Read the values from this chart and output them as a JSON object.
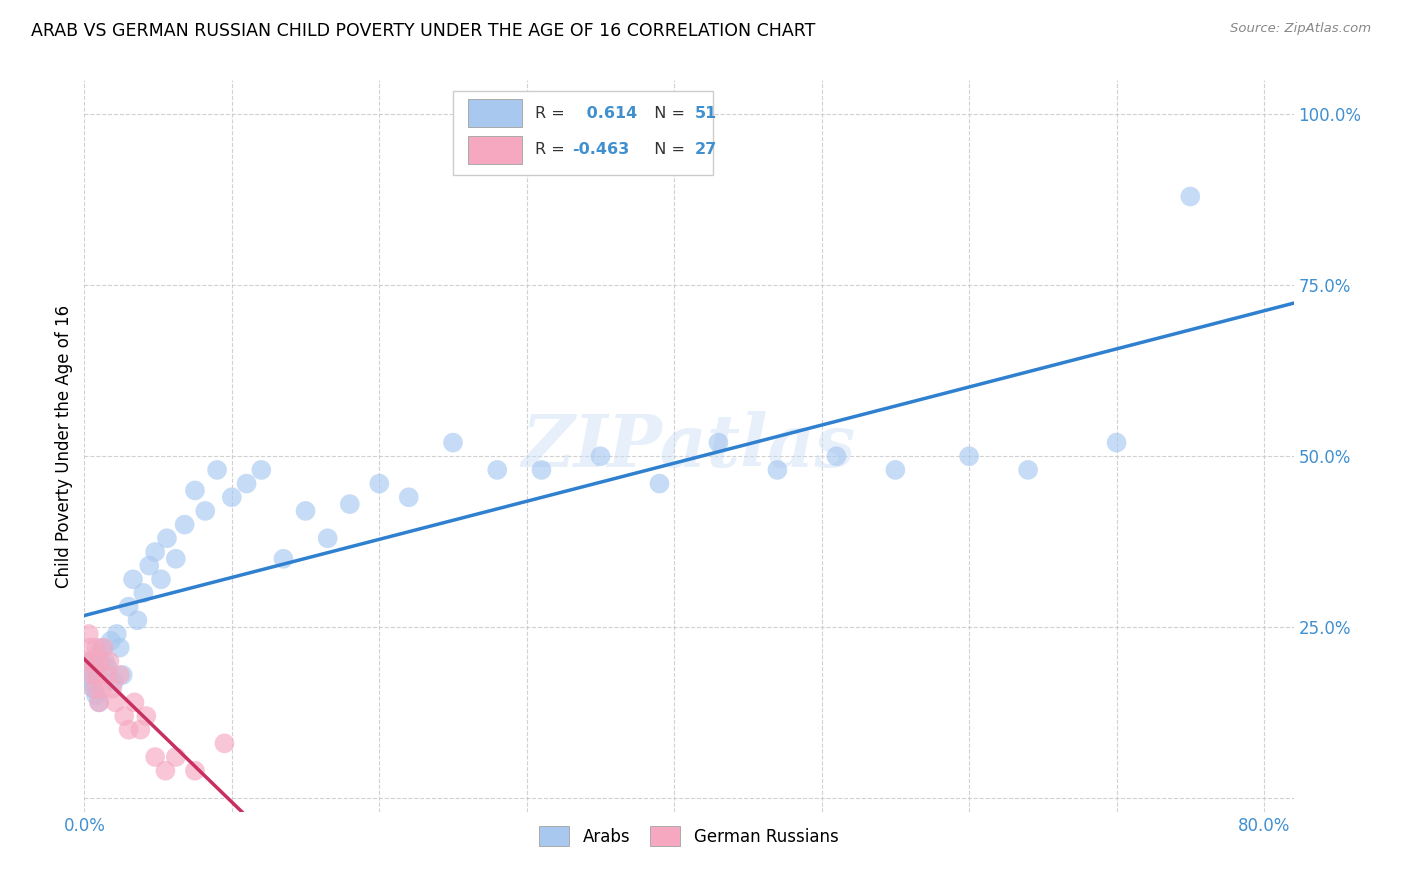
{
  "title": "ARAB VS GERMAN RUSSIAN CHILD POVERTY UNDER THE AGE OF 16 CORRELATION CHART",
  "source": "Source: ZipAtlas.com",
  "ylabel": "Child Poverty Under the Age of 16",
  "xlim": [
    0.0,
    0.82
  ],
  "ylim": [
    -0.02,
    1.05
  ],
  "arab_R": 0.614,
  "arab_N": 51,
  "german_russian_R": -0.463,
  "german_russian_N": 27,
  "arab_color": "#a8c8f0",
  "arab_line_color": "#3080d0",
  "german_russian_color": "#f5a8c0",
  "german_russian_line_color": "#c83060",
  "watermark": "ZIPatlas",
  "tick_color": "#4090d0",
  "arab_x": [
    0.003,
    0.004,
    0.005,
    0.006,
    0.007,
    0.008,
    0.009,
    0.01,
    0.012,
    0.014,
    0.016,
    0.018,
    0.02,
    0.022,
    0.024,
    0.026,
    0.03,
    0.033,
    0.036,
    0.04,
    0.044,
    0.048,
    0.052,
    0.056,
    0.062,
    0.068,
    0.075,
    0.082,
    0.09,
    0.1,
    0.11,
    0.12,
    0.135,
    0.15,
    0.165,
    0.18,
    0.2,
    0.22,
    0.25,
    0.28,
    0.31,
    0.35,
    0.39,
    0.43,
    0.47,
    0.51,
    0.55,
    0.6,
    0.64,
    0.7,
    0.75
  ],
  "arab_y": [
    0.18,
    0.17,
    0.2,
    0.16,
    0.19,
    0.15,
    0.21,
    0.14,
    0.22,
    0.2,
    0.19,
    0.23,
    0.17,
    0.24,
    0.22,
    0.18,
    0.28,
    0.32,
    0.26,
    0.3,
    0.34,
    0.36,
    0.32,
    0.38,
    0.35,
    0.4,
    0.45,
    0.42,
    0.48,
    0.44,
    0.46,
    0.48,
    0.35,
    0.42,
    0.38,
    0.43,
    0.46,
    0.44,
    0.52,
    0.48,
    0.48,
    0.5,
    0.46,
    0.52,
    0.48,
    0.5,
    0.48,
    0.5,
    0.48,
    0.52,
    0.88
  ],
  "german_russian_x": [
    0.002,
    0.003,
    0.004,
    0.005,
    0.006,
    0.007,
    0.008,
    0.009,
    0.01,
    0.011,
    0.012,
    0.013,
    0.015,
    0.017,
    0.019,
    0.021,
    0.024,
    0.027,
    0.03,
    0.034,
    0.038,
    0.042,
    0.048,
    0.055,
    0.062,
    0.075,
    0.095
  ],
  "german_russian_y": [
    0.2,
    0.24,
    0.22,
    0.18,
    0.2,
    0.16,
    0.22,
    0.18,
    0.14,
    0.2,
    0.16,
    0.22,
    0.18,
    0.2,
    0.16,
    0.14,
    0.18,
    0.12,
    0.1,
    0.14,
    0.1,
    0.12,
    0.06,
    0.04,
    0.06,
    0.04,
    0.08
  ]
}
